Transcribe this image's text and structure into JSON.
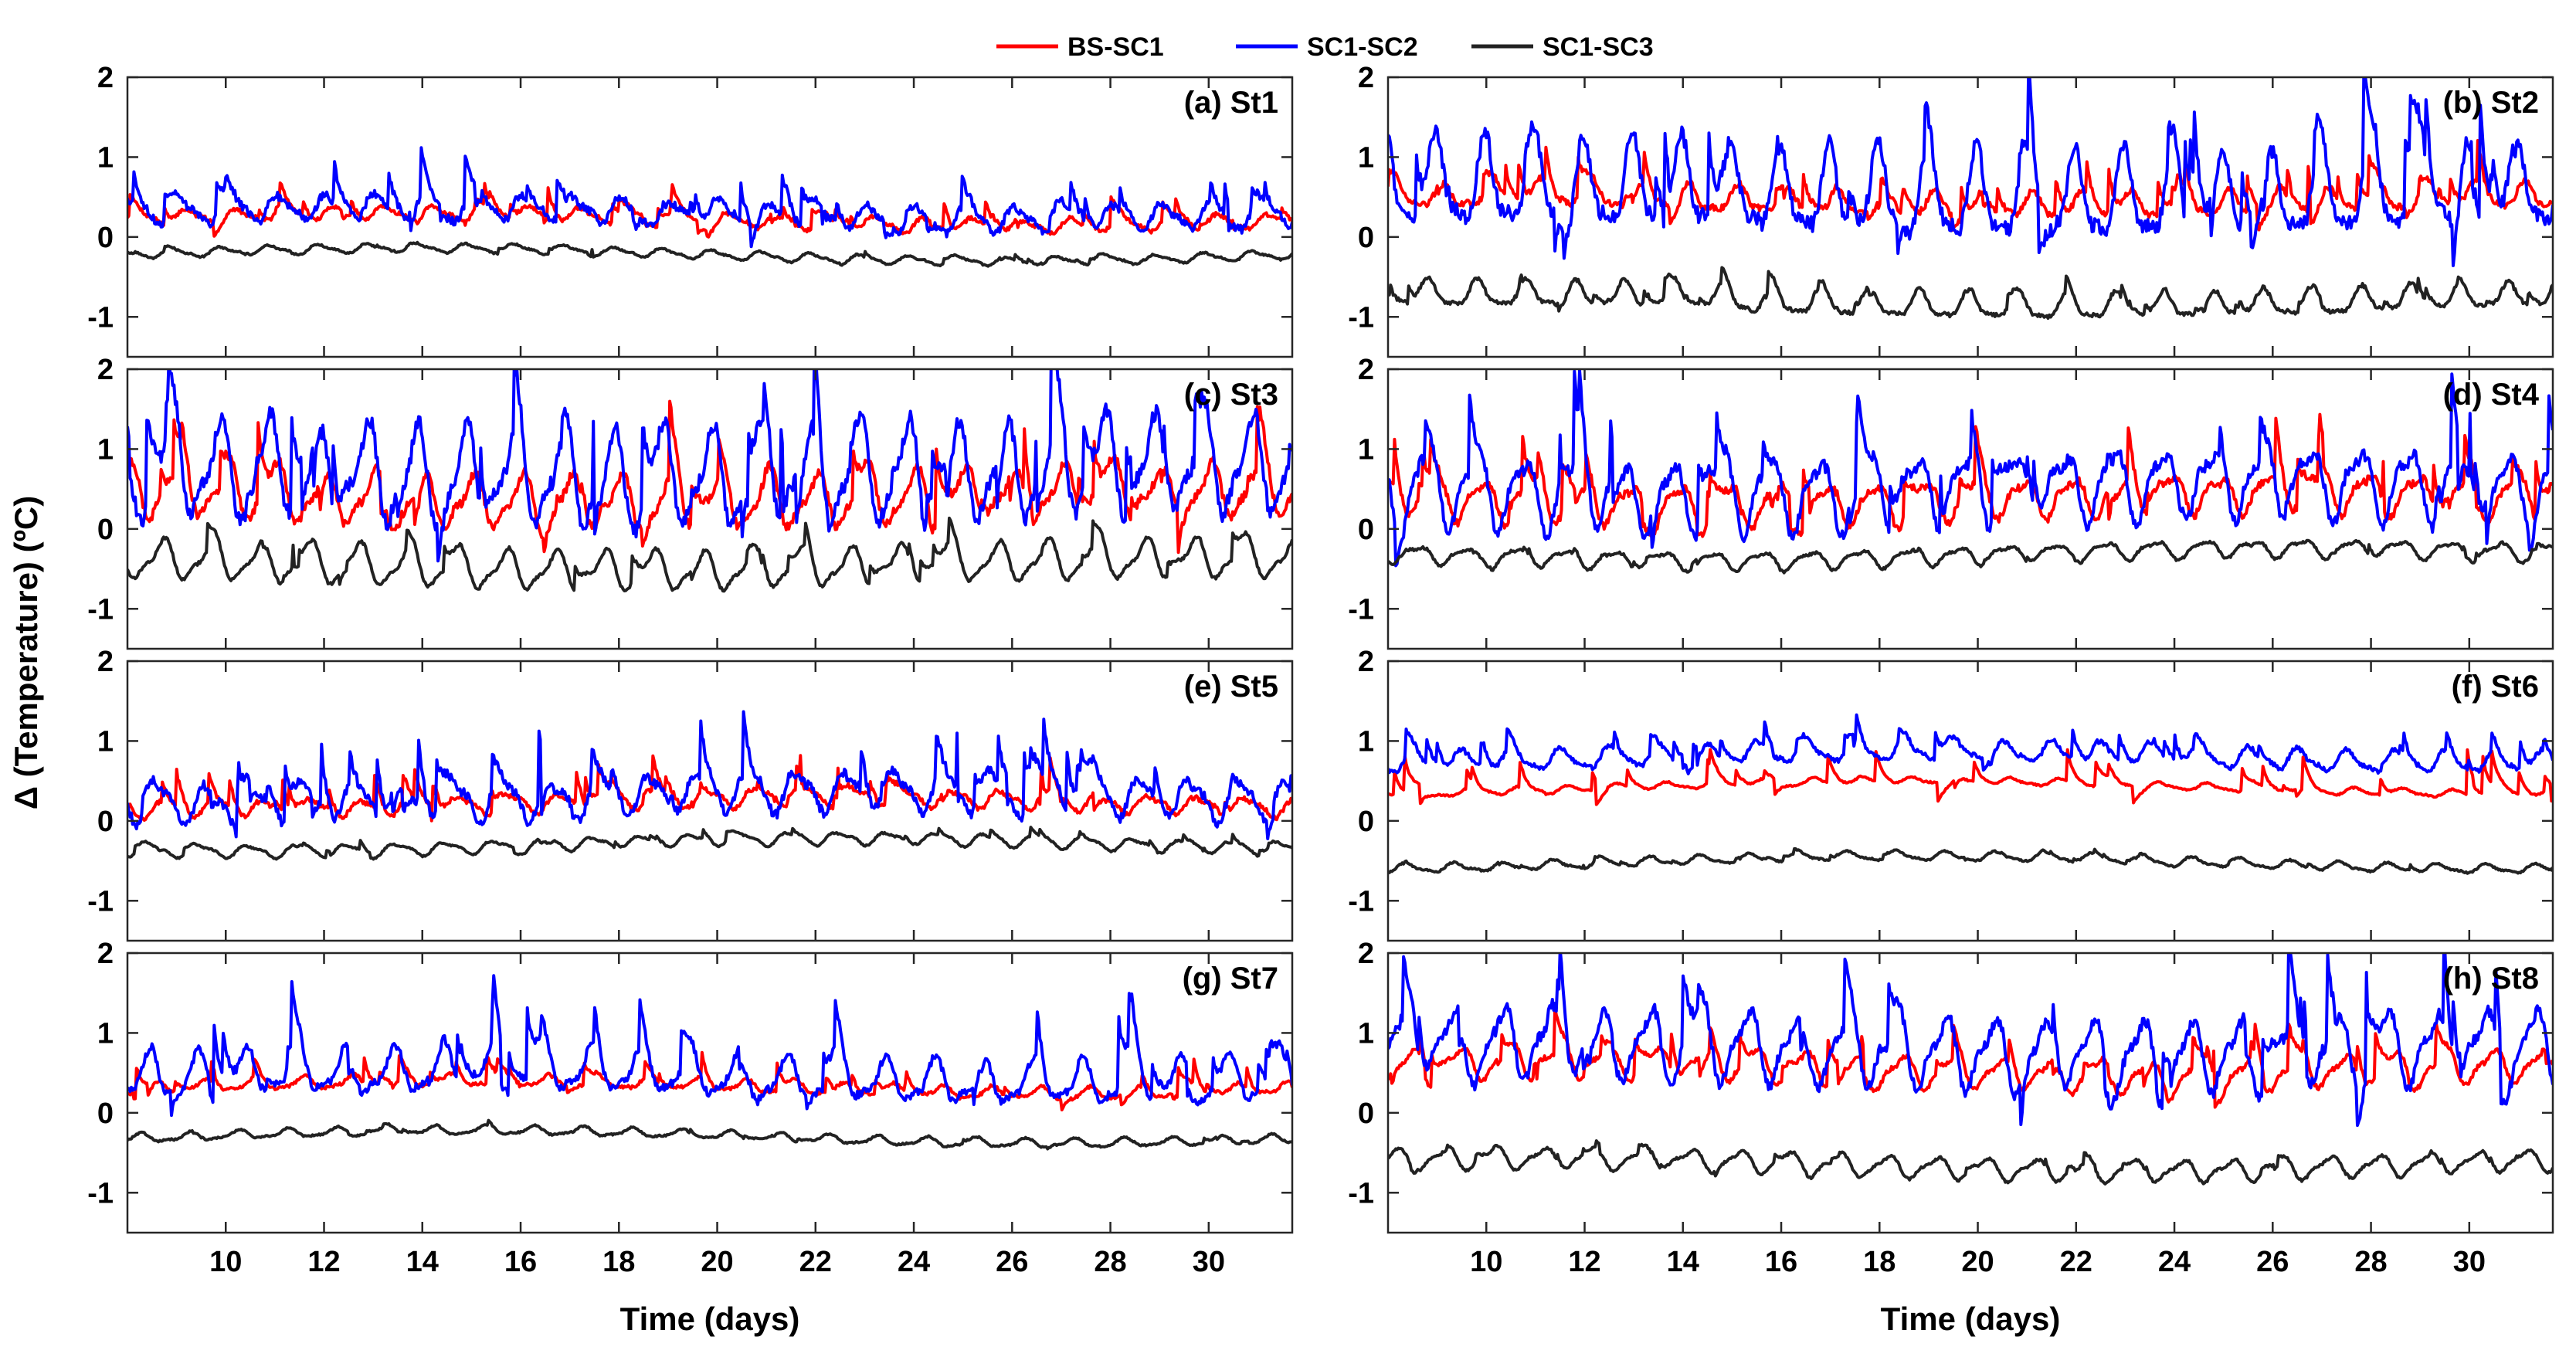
{
  "chart_data": {
    "type": "line",
    "legend": {
      "placement": "top-center",
      "entries": [
        {
          "name": "BS-SC1",
          "color": "#ff0000"
        },
        {
          "name": "SC1-SC2",
          "color": "#0000ff"
        },
        {
          "name": "SC1-SC3",
          "color": "#222222"
        }
      ]
    },
    "ylabel": "Δ (Temperature) (ºC)",
    "xlabel": "Time (days)",
    "xlim": [
      8,
      31.7
    ],
    "ylim": [
      -1.5,
      2
    ],
    "xticks": [
      10,
      12,
      14,
      16,
      18,
      20,
      22,
      24,
      26,
      28,
      30
    ],
    "yticks": [
      -1,
      0,
      1,
      2
    ],
    "panels": [
      {
        "title": "(a) St1",
        "series": [
          {
            "name": "BS-SC1",
            "base": 0.22,
            "amp": 0.08,
            "spikes": 0.15,
            "noise": 0.05
          },
          {
            "name": "SC1-SC2",
            "base": 0.3,
            "amp": 0.14,
            "spikes": 0.25,
            "noise": 0.1
          },
          {
            "name": "SC1-SC3",
            "base": -0.22,
            "amp": 0.05,
            "spikes": 0.03,
            "noise": 0.02
          }
        ]
      },
      {
        "title": "(b) St2",
        "series": [
          {
            "name": "BS-SC1",
            "base": 0.45,
            "amp": 0.15,
            "spikes": 0.25,
            "noise": 0.08
          },
          {
            "name": "SC1-SC2",
            "base": 0.55,
            "amp": 0.5,
            "spikes": 0.6,
            "noise": 0.2
          },
          {
            "name": "SC1-SC3",
            "base": -0.8,
            "amp": 0.15,
            "spikes": 0.1,
            "noise": 0.05
          }
        ]
      },
      {
        "title": "(c) St3",
        "series": [
          {
            "name": "BS-SC1",
            "base": 0.4,
            "amp": 0.3,
            "spikes": 0.45,
            "noise": 0.12
          },
          {
            "name": "SC1-SC2",
            "base": 0.7,
            "amp": 0.55,
            "spikes": 0.6,
            "noise": 0.2
          },
          {
            "name": "SC1-SC3",
            "base": -0.45,
            "amp": 0.22,
            "spikes": 0.15,
            "noise": 0.04
          }
        ]
      },
      {
        "title": "(d) St4",
        "series": [
          {
            "name": "BS-SC1",
            "base": 0.38,
            "amp": 0.22,
            "spikes": 0.35,
            "noise": 0.1
          },
          {
            "name": "SC1-SC2",
            "base": 0.5,
            "amp": 0.4,
            "spikes": 0.55,
            "noise": 0.15
          },
          {
            "name": "SC1-SC3",
            "base": -0.32,
            "amp": 0.1,
            "spikes": 0.06,
            "noise": 0.03
          }
        ]
      },
      {
        "title": "(e) St5",
        "series": [
          {
            "name": "BS-SC1",
            "base": 0.22,
            "amp": 0.1,
            "spikes": 0.2,
            "noise": 0.06
          },
          {
            "name": "SC1-SC2",
            "base": 0.3,
            "amp": 0.22,
            "spikes": 0.4,
            "noise": 0.12
          },
          {
            "name": "SC1-SC3",
            "base": -0.3,
            "amp": 0.07,
            "spikes": 0.05,
            "noise": 0.02
          }
        ]
      },
      {
        "title": "(f) St6",
        "series": [
          {
            "name": "BS-SC1",
            "base": 0.42,
            "amp": 0.04,
            "spikes": 0.25,
            "noise": 0.02
          },
          {
            "name": "SC1-SC2",
            "base": 0.8,
            "amp": 0.12,
            "spikes": 0.15,
            "noise": 0.06
          },
          {
            "name": "SC1-SC3",
            "base": -0.52,
            "amp": 0.05,
            "spikes": 0.03,
            "noise": 0.02
          }
        ]
      },
      {
        "title": "(g) St7",
        "series": [
          {
            "name": "BS-SC1",
            "base": 0.32,
            "amp": 0.07,
            "spikes": 0.15,
            "noise": 0.04
          },
          {
            "name": "SC1-SC2",
            "base": 0.45,
            "amp": 0.25,
            "spikes": 0.4,
            "noise": 0.1
          },
          {
            "name": "SC1-SC3",
            "base": -0.3,
            "amp": 0.05,
            "spikes": 0.03,
            "noise": 0.02
          }
        ]
      },
      {
        "title": "(h) St8",
        "series": [
          {
            "name": "BS-SC1",
            "base": 0.55,
            "amp": 0.18,
            "spikes": 0.25,
            "noise": 0.06
          },
          {
            "name": "SC1-SC2",
            "base": 0.8,
            "amp": 0.4,
            "spikes": 0.55,
            "noise": 0.15
          },
          {
            "name": "SC1-SC3",
            "base": -0.65,
            "amp": 0.12,
            "spikes": 0.05,
            "noise": 0.03
          }
        ]
      }
    ]
  }
}
